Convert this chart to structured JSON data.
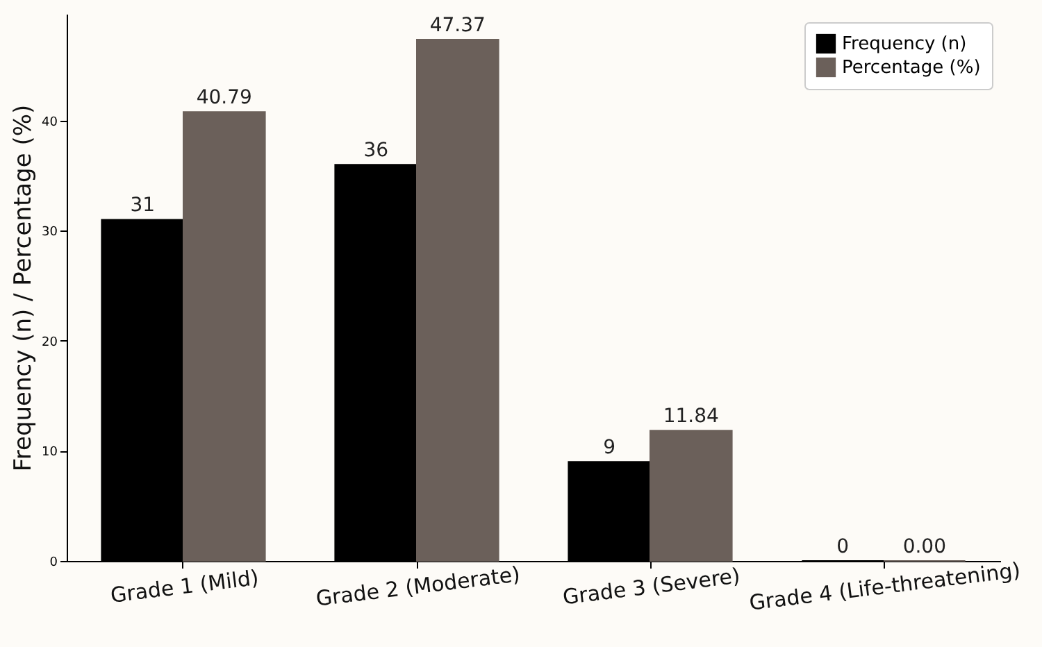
{
  "chart_data": {
    "type": "bar",
    "ylabel": "Frequency (n) / Percentage (%)",
    "categories": [
      "Grade 1 (Mild)",
      "Grade 2 (Moderate)",
      "Grade 3 (Severe)",
      "Grade 4 (Life-threatening)"
    ],
    "series": [
      {
        "name": "Frequency (n)",
        "color": "#000000",
        "values": [
          31,
          36,
          9,
          0
        ],
        "value_labels": [
          "31",
          "36",
          "9",
          "0"
        ]
      },
      {
        "name": "Percentage (%)",
        "color": "#6b605a",
        "values": [
          40.79,
          47.37,
          11.84,
          0
        ],
        "value_labels": [
          "40.79",
          "47.37",
          "11.84",
          "0.00"
        ]
      }
    ],
    "ylim": [
      0,
      49.7
    ],
    "yticks": [
      0,
      10,
      20,
      30,
      40
    ],
    "grid": false,
    "legend": "top right"
  }
}
